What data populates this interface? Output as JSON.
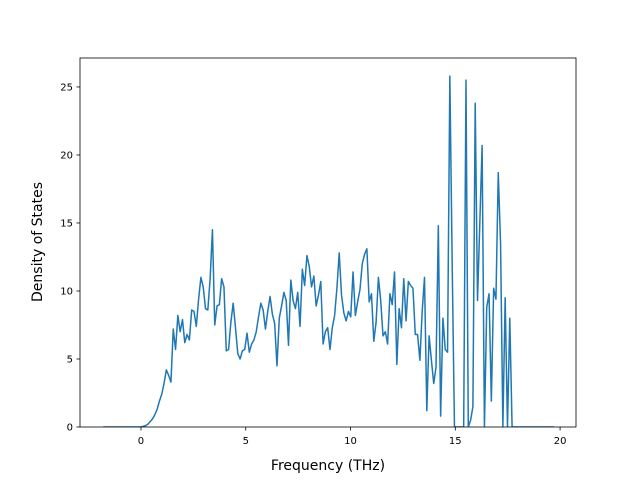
{
  "chart_data": {
    "type": "line",
    "xlabel": "Frequency (THz)",
    "ylabel": "Density of States",
    "xlim": [
      -2.91,
      20.76
    ],
    "ylim": [
      0,
      27.13
    ],
    "xticks": [
      0,
      5,
      10,
      15,
      20
    ],
    "yticks": [
      0,
      5,
      10,
      15,
      20,
      25
    ],
    "grid": false,
    "series": [
      {
        "color": "#1f77b4",
        "x": [
          -1.8,
          0,
          0.11,
          0.22,
          0.33,
          0.44,
          0.55,
          0.66,
          0.77,
          0.88,
          0.99,
          1.1,
          1.21,
          1.32,
          1.43,
          1.54,
          1.65,
          1.76,
          1.87,
          1.98,
          2.09,
          2.2,
          2.31,
          2.42,
          2.53,
          2.64,
          2.75,
          2.86,
          2.97,
          3.08,
          3.19,
          3.3,
          3.41,
          3.52,
          3.63,
          3.74,
          3.85,
          3.96,
          4.07,
          4.18,
          4.29,
          4.4,
          4.51,
          4.62,
          4.73,
          4.84,
          4.95,
          5.06,
          5.17,
          5.28,
          5.39,
          5.5,
          5.61,
          5.72,
          5.83,
          5.94,
          6.05,
          6.16,
          6.27,
          6.38,
          6.49,
          6.6,
          6.71,
          6.82,
          6.93,
          7.04,
          7.15,
          7.26,
          7.37,
          7.48,
          7.59,
          7.7,
          7.81,
          7.92,
          8.03,
          8.14,
          8.25,
          8.36,
          8.47,
          8.58,
          8.69,
          8.8,
          8.91,
          9.02,
          9.13,
          9.24,
          9.35,
          9.46,
          9.57,
          9.68,
          9.79,
          9.9,
          10.01,
          10.12,
          10.23,
          10.34,
          10.45,
          10.56,
          10.67,
          10.78,
          10.89,
          11,
          11.11,
          11.22,
          11.33,
          11.44,
          11.55,
          11.66,
          11.77,
          11.88,
          11.99,
          12.1,
          12.21,
          12.32,
          12.43,
          12.54,
          12.65,
          12.76,
          12.87,
          12.98,
          13.09,
          13.2,
          13.31,
          13.42,
          13.53,
          13.64,
          13.75,
          13.86,
          13.97,
          14.08,
          14.19,
          14.3,
          14.41,
          14.52,
          14.63,
          14.74,
          14.85,
          14.96,
          15.07,
          15.18,
          15.29,
          15.4,
          15.51,
          15.62,
          15.73,
          15.84,
          15.95,
          16.06,
          16.17,
          16.28,
          16.39,
          16.5,
          16.61,
          16.72,
          16.83,
          16.94,
          17.05,
          17.16,
          17.27,
          17.38,
          17.49,
          17.6,
          17.71,
          19.7
        ],
        "values": [
          0,
          0,
          0.05,
          0.1,
          0.2,
          0.4,
          0.6,
          0.9,
          1.3,
          1.9,
          2.4,
          3.2,
          4.2,
          3.8,
          3.3,
          7.2,
          5.7,
          8.2,
          7.0,
          7.9,
          6.2,
          6.8,
          6.4,
          8.6,
          8.5,
          7.4,
          9.4,
          11.0,
          10.3,
          8.7,
          8.6,
          10.9,
          14.5,
          7.5,
          8.9,
          9.0,
          10.9,
          10.3,
          5.6,
          5.7,
          7.7,
          9.1,
          7.3,
          5.4,
          5.0,
          5.6,
          5.7,
          6.9,
          5.5,
          6.1,
          6.4,
          7.0,
          8.1,
          9.1,
          8.6,
          7.2,
          8.5,
          9.6,
          8.3,
          7.6,
          4.5,
          8.0,
          8.9,
          9.9,
          9.3,
          6.0,
          10.8,
          9.3,
          8.7,
          9.9,
          7.4,
          11.6,
          10.4,
          12.6,
          11.8,
          10.3,
          11.1,
          8.9,
          9.7,
          10.7,
          6.1,
          7.0,
          7.3,
          5.7,
          7.3,
          8.2,
          10.2,
          12.8,
          9.7,
          8.4,
          7.8,
          8.5,
          8.1,
          11.4,
          8.2,
          9.2,
          10.1,
          12.0,
          12.7,
          13.1,
          9.2,
          9.8,
          6.3,
          7.7,
          11.0,
          9.3,
          6.7,
          7.0,
          6.1,
          9.8,
          9.0,
          11.4,
          4.6,
          8.7,
          7.3,
          10.9,
          7.8,
          10.7,
          10.4,
          10.2,
          6.8,
          6.8,
          4.9,
          8.5,
          11.0,
          1.2,
          6.7,
          4.9,
          3.2,
          4.4,
          14.8,
          0.8,
          8.0,
          5.7,
          5.5,
          25.8,
          12.1,
          0,
          0,
          0,
          0,
          0,
          25.5,
          0,
          0.5,
          1.5,
          23.8,
          9.3,
          15,
          20.7,
          0,
          8.8,
          9.8,
          1.9,
          10.2,
          9.4,
          18.7,
          13.5,
          0,
          9.5,
          0,
          8.0,
          0,
          0
        ]
      }
    ]
  }
}
